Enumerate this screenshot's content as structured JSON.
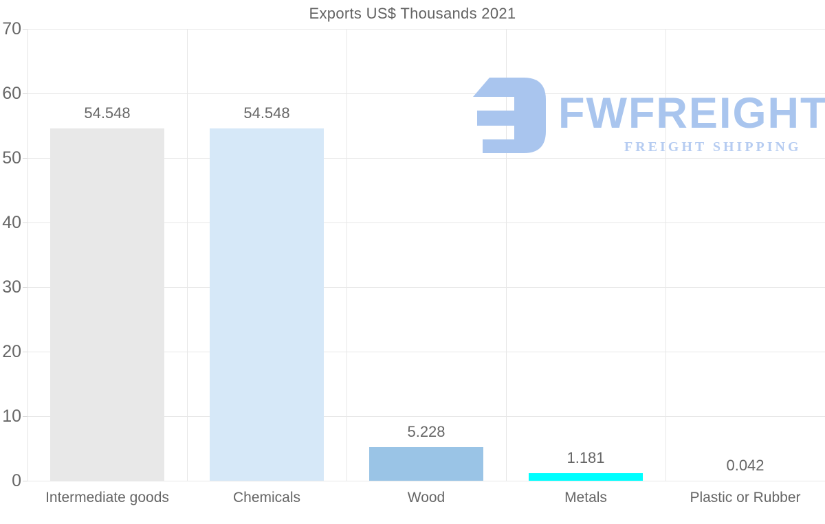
{
  "chart_data": {
    "type": "bar",
    "title": "Exports US$ Thousands 2021",
    "categories": [
      "Intermediate goods",
      "Chemicals",
      "Wood",
      "Metals",
      "Plastic or Rubber"
    ],
    "values": [
      54.548,
      54.548,
      5.228,
      1.181,
      0.042
    ],
    "value_labels": [
      "54.548",
      "54.548",
      "5.228",
      "1.181",
      "0.042"
    ],
    "bar_colors": [
      "#e8e8e8",
      "#d6e8f8",
      "#9ac4e6",
      "#00ffff",
      "#e8e8e8"
    ],
    "xlabel": "",
    "ylabel": "",
    "ylim": [
      0,
      70
    ],
    "yticks": [
      0,
      10,
      20,
      30,
      40,
      50,
      60,
      70
    ],
    "grid": "horizontal gridlines at each ytick plus vertical band separators, light gray",
    "legend": "none"
  },
  "logo": {
    "wordmark": "FWFREIGHT",
    "tagline": "FREIGHT SHIPPING",
    "color": "#a9c5ee"
  },
  "colors": {
    "background": "#ffffff",
    "text": "#666666",
    "grid": "#e7e7e7"
  }
}
